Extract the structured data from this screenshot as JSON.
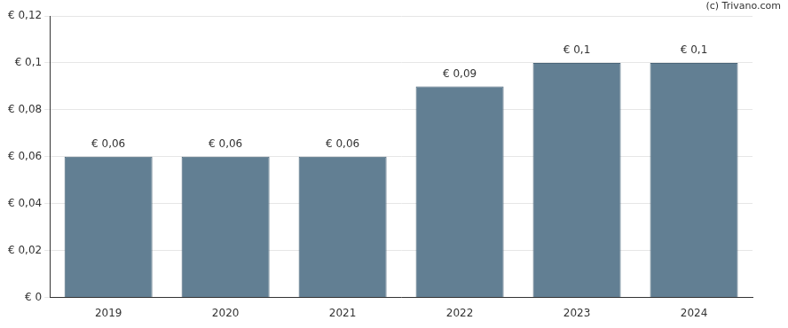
{
  "chart_data": {
    "type": "bar",
    "annotation": "(c) Trivano.com",
    "categories": [
      "2019",
      "2020",
      "2021",
      "2022",
      "2023",
      "2024"
    ],
    "values": [
      0.06,
      0.06,
      0.06,
      0.09,
      0.1,
      0.1
    ],
    "value_labels": [
      "€ 0,06",
      "€ 0,06",
      "€ 0,06",
      "€ 0,09",
      "€ 0,1",
      "€ 0,1"
    ],
    "data_labels": true,
    "color": "#627f93",
    "ylim": [
      0,
      0.12
    ],
    "yticks": [
      {
        "value": 0,
        "label": "€ 0"
      },
      {
        "value": 0.02,
        "label": "€ 0,02"
      },
      {
        "value": 0.04,
        "label": "€ 0,04"
      },
      {
        "value": 0.06,
        "label": "€ 0,06"
      },
      {
        "value": 0.08,
        "label": "€ 0,08"
      },
      {
        "value": 0.1,
        "label": "€ 0,1"
      },
      {
        "value": 0.12,
        "label": "€ 0,12"
      }
    ],
    "grid": true
  }
}
